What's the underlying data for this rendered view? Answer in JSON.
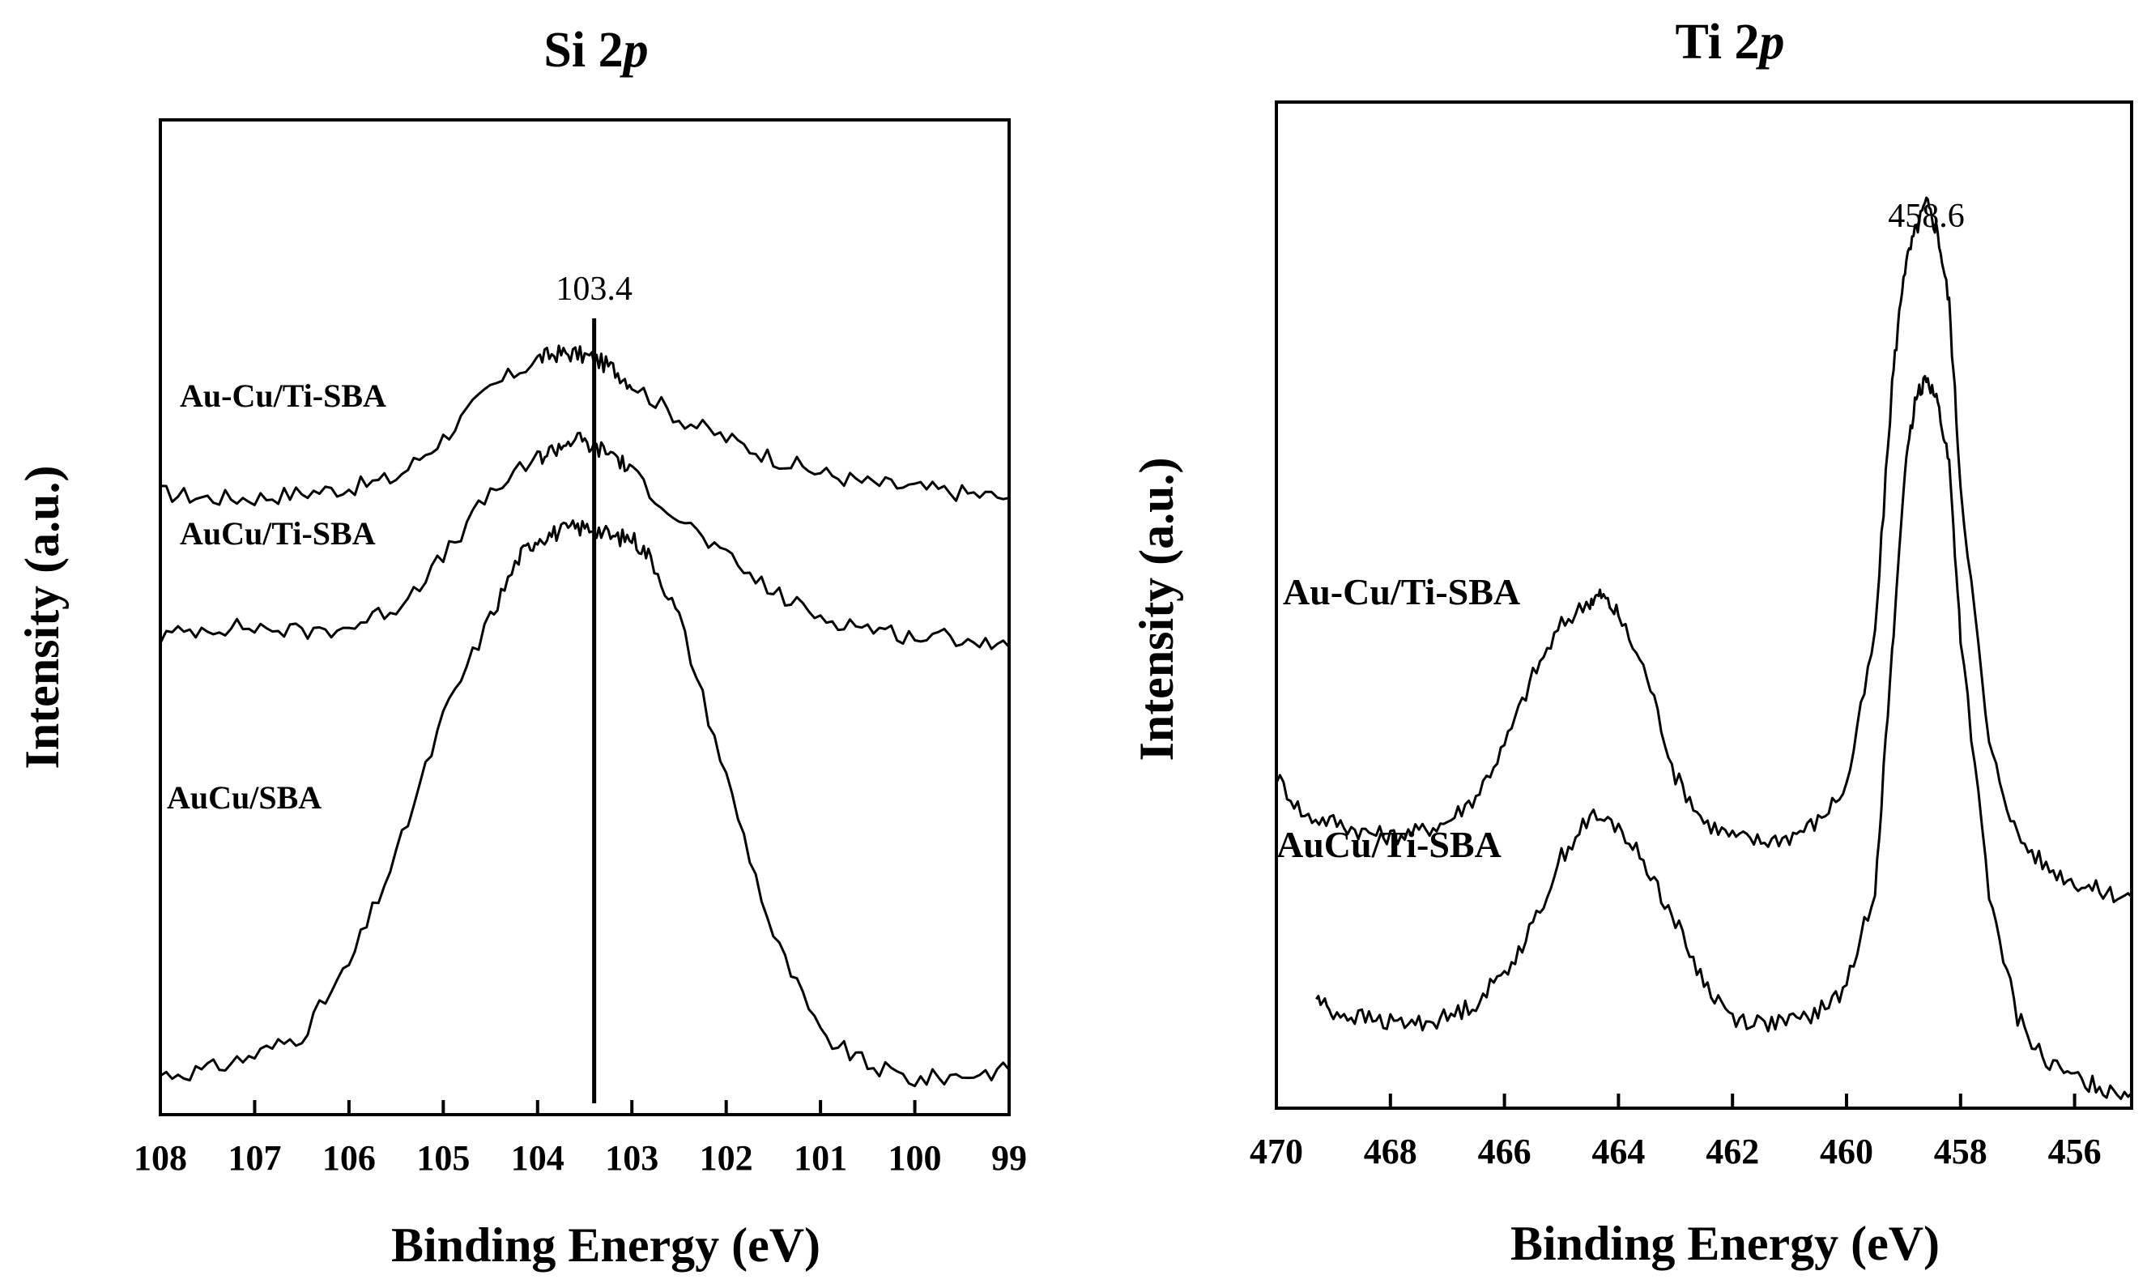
{
  "chart_data": [
    {
      "type": "line",
      "title_main": "Si 2",
      "title_italic": "p",
      "xlabel": "Binding Energy (eV)",
      "ylabel": "Intensity (a.u.)",
      "xlim": [
        108,
        99
      ],
      "ylim": [
        0,
        1
      ],
      "xticks": [
        "108",
        "107",
        "106",
        "105",
        "104",
        "103",
        "102",
        "101",
        "100",
        "99"
      ],
      "grid": false,
      "annotation": {
        "text": "103.4",
        "x": 103.4
      },
      "series": [
        {
          "name": "Au-Cu/Ti-SBA",
          "x": [
            108,
            107.5,
            107,
            106.5,
            106,
            105.5,
            105,
            104.5,
            104,
            103.8,
            103.6,
            103.4,
            103.2,
            103,
            102.5,
            102,
            101.5,
            101,
            100.5,
            100,
            99.5,
            99
          ],
          "y": [
            0.625,
            0.62,
            0.62,
            0.625,
            0.63,
            0.64,
            0.68,
            0.73,
            0.76,
            0.765,
            0.765,
            0.76,
            0.75,
            0.735,
            0.7,
            0.68,
            0.66,
            0.645,
            0.635,
            0.63,
            0.625,
            0.62
          ]
        },
        {
          "name": "AuCu/Ti-SBA",
          "x": [
            108,
            107.5,
            107,
            106.5,
            106,
            105.5,
            105,
            104.5,
            104,
            103.8,
            103.6,
            103.4,
            103.2,
            103,
            102.5,
            102,
            101.5,
            101,
            100.5,
            100,
            99.5,
            99
          ],
          "y": [
            0.48,
            0.49,
            0.49,
            0.485,
            0.49,
            0.51,
            0.56,
            0.625,
            0.66,
            0.67,
            0.68,
            0.67,
            0.665,
            0.645,
            0.6,
            0.56,
            0.525,
            0.5,
            0.49,
            0.48,
            0.48,
            0.47
          ]
        },
        {
          "name": "AuCu/SBA",
          "x": [
            108,
            107.5,
            107,
            106.5,
            106,
            105.5,
            105,
            104.5,
            104.2,
            104,
            103.8,
            103.6,
            103.4,
            103.2,
            103,
            102.8,
            102.5,
            102,
            101.5,
            101,
            100.5,
            100,
            99.5,
            99
          ],
          "y": [
            0.04,
            0.045,
            0.06,
            0.08,
            0.15,
            0.26,
            0.4,
            0.5,
            0.56,
            0.58,
            0.585,
            0.59,
            0.59,
            0.58,
            0.58,
            0.56,
            0.5,
            0.34,
            0.18,
            0.08,
            0.05,
            0.035,
            0.04,
            0.045
          ]
        }
      ]
    },
    {
      "type": "line",
      "title_main": "Ti 2",
      "title_italic": "p",
      "xlabel": "Binding Energy (eV)",
      "ylabel": "Intensity (a.u.)",
      "xlim": [
        470,
        455
      ],
      "ylim": [
        0,
        1
      ],
      "xticks": [
        "470",
        "468",
        "466",
        "464",
        "462",
        "460",
        "458",
        "456"
      ],
      "grid": false,
      "annotation": {
        "text": "458.6",
        "x": 458.6
      },
      "series": [
        {
          "name": "Au-Cu/Ti-SBA",
          "x": [
            470,
            469.5,
            469,
            468.5,
            468,
            467.5,
            467,
            466.5,
            466,
            465.5,
            465,
            464.5,
            464.3,
            464,
            463.5,
            463,
            462.5,
            462,
            461.5,
            461,
            460.5,
            460,
            459.5,
            459.2,
            459,
            458.8,
            458.6,
            458.4,
            458.2,
            458,
            457.5,
            457,
            456.5,
            456,
            455.5,
            455
          ],
          "y": [
            0.33,
            0.29,
            0.285,
            0.275,
            0.27,
            0.275,
            0.285,
            0.31,
            0.36,
            0.43,
            0.48,
            0.505,
            0.51,
            0.49,
            0.43,
            0.33,
            0.285,
            0.27,
            0.265,
            0.27,
            0.285,
            0.32,
            0.47,
            0.72,
            0.83,
            0.87,
            0.9,
            0.87,
            0.8,
            0.62,
            0.36,
            0.27,
            0.24,
            0.225,
            0.215,
            0.21
          ]
        },
        {
          "name": "AuCu/Ti-SBA",
          "x": [
            469.3,
            469,
            468.5,
            468,
            467.5,
            467,
            466.5,
            466,
            465.5,
            465,
            464.5,
            464,
            463.5,
            463,
            462.5,
            462,
            461.5,
            461,
            460.5,
            460,
            459.5,
            459.2,
            459,
            458.8,
            458.6,
            458.4,
            458.2,
            458,
            457.5,
            457,
            456.5,
            456,
            455.5,
            455
          ],
          "y": [
            0.11,
            0.095,
            0.09,
            0.085,
            0.085,
            0.09,
            0.105,
            0.135,
            0.18,
            0.25,
            0.29,
            0.28,
            0.24,
            0.185,
            0.125,
            0.09,
            0.085,
            0.085,
            0.095,
            0.12,
            0.22,
            0.45,
            0.62,
            0.7,
            0.73,
            0.7,
            0.64,
            0.47,
            0.21,
            0.09,
            0.045,
            0.03,
            0.02,
            0.015
          ]
        }
      ]
    }
  ]
}
